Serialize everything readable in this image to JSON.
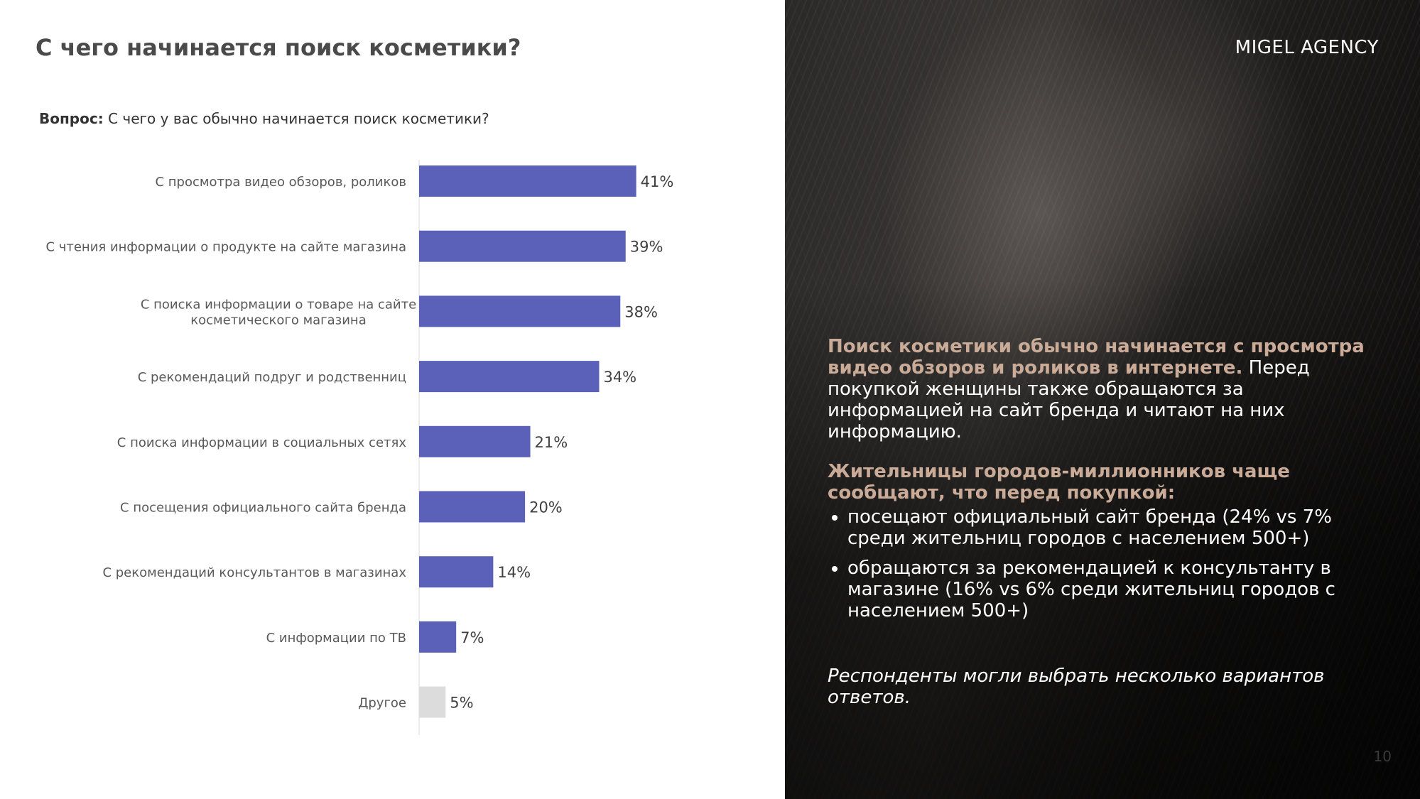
{
  "header": {
    "title": "С чего начинается поиск косметики?",
    "question_label": "Вопрос:",
    "question_text": "С чего у вас обычно начинается поиск косметики?"
  },
  "chart_data": {
    "type": "bar",
    "orientation": "horizontal",
    "categories": [
      "С просмотра видео обзоров, роликов",
      "С чтения информации о продукте на сайте магазина",
      [
        "С поиска информации о товаре на сайте",
        "косметического магазина"
      ],
      "С рекомендаций подруг и родственниц",
      "С поиска информации в социальных сетях",
      "С посещения официального сайта бренда",
      "С рекомендаций консультантов в магазинах",
      "С информации по ТВ",
      "Другое"
    ],
    "values": [
      41,
      39,
      38,
      34,
      21,
      20,
      14,
      7,
      5
    ],
    "value_labels": [
      "41%",
      "39%",
      "38%",
      "34%",
      "21%",
      "20%",
      "14%",
      "7%",
      "5%"
    ],
    "colors": [
      "#5b61b9",
      "#5b61b9",
      "#5b61b9",
      "#5b61b9",
      "#5b61b9",
      "#5b61b9",
      "#5b61b9",
      "#5b61b9",
      "#dcdcdc"
    ],
    "xlim": [
      0,
      55
    ],
    "grid": false
  },
  "sidebar": {
    "brand": "MIGEL AGENCY",
    "summary_highlight": "Поиск косметики обычно начинается с просмотра видео обзоров и роликов в интернете.",
    "summary_text": " Перед покупкой женщины также обращаются за информацией на сайт бренда и читают на них информацию.",
    "cities_heading": "Жительницы городов-миллионников чаще сообщают, что перед покупкой:",
    "bullets": [
      "посещают официальный сайт бренда (24% vs 7% среди жительниц городов с населением 500+)",
      "обращаются за рекомендацией к консультанту в магазине (16% vs 6% среди жительниц городов с населением 500+)"
    ],
    "note": "Респонденты могли выбрать несколько вариантов ответов.",
    "page_number": "10"
  },
  "colors": {
    "bar_primary": "#5b61b9",
    "bar_other": "#dcdcdc",
    "highlight_text": "#c9ab98"
  }
}
